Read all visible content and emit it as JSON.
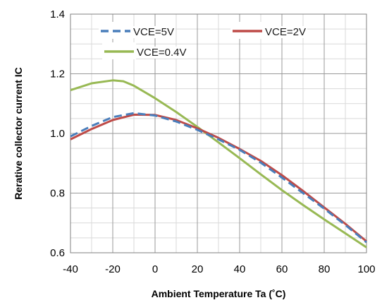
{
  "chart_data": {
    "type": "line",
    "title": "",
    "xlabel": "Ambient Temperature  Ta (˚C)",
    "ylabel": "Rerative collector current  IC",
    "xlim": [
      -40,
      100
    ],
    "ylim": [
      0.6,
      1.4
    ],
    "x_ticks": [
      "-40",
      "-20",
      "0",
      "20",
      "40",
      "60",
      "80",
      "100"
    ],
    "y_ticks": [
      "0.6",
      "0.8",
      "1.0",
      "1.2",
      "1.4"
    ],
    "minor_grid_x_step": 10,
    "minor_grid_y_step": 0.05,
    "grid": true,
    "legend_position": "top",
    "series": [
      {
        "name": "VCE=5V",
        "color": "#4a7ebb",
        "style": "dashed",
        "x": [
          -40,
          -30,
          -20,
          -10,
          0,
          10,
          20,
          30,
          40,
          50,
          60,
          70,
          80,
          90,
          100
        ],
        "y": [
          0.99,
          1.025,
          1.055,
          1.068,
          1.06,
          1.04,
          1.012,
          0.98,
          0.945,
          0.902,
          0.852,
          0.8,
          0.748,
          0.693,
          0.635
        ]
      },
      {
        "name": "VCE=2V",
        "color": "#be4b48",
        "style": "solid",
        "x": [
          -40,
          -30,
          -20,
          -10,
          0,
          10,
          20,
          30,
          40,
          50,
          60,
          70,
          80,
          90,
          100
        ],
        "y": [
          0.98,
          1.015,
          1.045,
          1.063,
          1.062,
          1.045,
          1.017,
          0.985,
          0.948,
          0.908,
          0.86,
          0.807,
          0.752,
          0.697,
          0.638
        ]
      },
      {
        "name": "VCE=0.4V",
        "color": "#98b954",
        "style": "solid",
        "x": [
          -40,
          -30,
          -20,
          -15,
          -10,
          0,
          10,
          20,
          30,
          40,
          50,
          60,
          70,
          80,
          90,
          100
        ],
        "y": [
          1.145,
          1.168,
          1.178,
          1.175,
          1.16,
          1.118,
          1.072,
          1.022,
          0.97,
          0.917,
          0.863,
          0.81,
          0.76,
          0.712,
          0.665,
          0.618
        ]
      }
    ]
  }
}
